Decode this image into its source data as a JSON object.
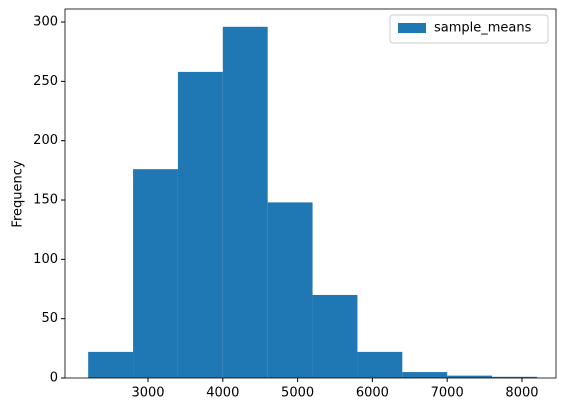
{
  "chart_data": {
    "type": "histogram",
    "ylabel": "Frequency",
    "bins": [
      2200,
      2800,
      3400,
      4000,
      4600,
      5200,
      5800,
      6400,
      7000,
      7600,
      8200
    ],
    "series": [
      {
        "name": "sample_means",
        "color": "#1f77b4",
        "values": [
          22,
          176,
          258,
          296,
          148,
          70,
          22,
          5,
          2,
          1
        ]
      }
    ],
    "xlim": [
      1890,
      8455
    ],
    "xticks": [
      3000,
      4000,
      5000,
      6000,
      7000,
      8000
    ],
    "ylim": [
      0,
      311
    ],
    "yticks": [
      0,
      50,
      100,
      150,
      200,
      250,
      300
    ],
    "legend": "upper right"
  }
}
